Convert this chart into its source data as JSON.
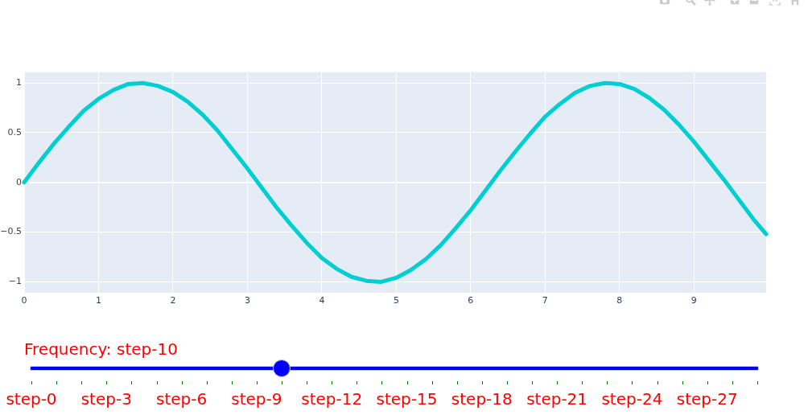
{
  "chart_data": {
    "type": "line",
    "x": [
      0,
      0.2,
      0.4,
      0.6,
      0.8,
      1.0,
      1.2,
      1.4,
      1.6,
      1.8,
      2.0,
      2.2,
      2.4,
      2.6,
      2.8,
      3.0,
      3.2,
      3.4,
      3.6,
      3.8,
      4.0,
      4.2,
      4.4,
      4.6,
      4.8,
      5.0,
      5.2,
      5.4,
      5.6,
      5.8,
      6.0,
      6.2,
      6.4,
      6.6,
      6.8,
      7.0,
      7.2,
      7.4,
      7.6,
      7.8,
      8.0,
      8.2,
      8.4,
      8.6,
      8.8,
      9.0,
      9.2,
      9.4,
      9.6,
      9.8,
      9.97
    ],
    "values": [
      0,
      0.2,
      0.39,
      0.56,
      0.72,
      0.84,
      0.93,
      0.99,
      1.0,
      0.97,
      0.91,
      0.81,
      0.68,
      0.52,
      0.33,
      0.14,
      -0.06,
      -0.26,
      -0.44,
      -0.61,
      -0.76,
      -0.87,
      -0.95,
      -0.99,
      -1.0,
      -0.96,
      -0.88,
      -0.77,
      -0.63,
      -0.46,
      -0.28,
      -0.08,
      0.12,
      0.31,
      0.49,
      0.66,
      0.79,
      0.9,
      0.97,
      1.0,
      0.99,
      0.94,
      0.85,
      0.73,
      0.58,
      0.41,
      0.22,
      0.03,
      -0.17,
      -0.37,
      -0.52
    ],
    "color": "#00ced1",
    "xlim": [
      0,
      9.97
    ],
    "xticks": [
      0,
      1,
      2,
      3,
      4,
      5,
      6,
      7,
      8,
      9
    ],
    "ylim": [
      -1.11,
      1.11
    ],
    "yticks": [
      {
        "value": -1,
        "label": "−1"
      },
      {
        "value": -0.5,
        "label": "−0.5"
      },
      0,
      0.5,
      1
    ],
    "grid": true,
    "annotations": [
      "Frequency: step-10",
      "step-0",
      "step-3",
      "step-6",
      "step-9",
      "step-12",
      "step-15",
      "step-18",
      "step-21",
      "step-24",
      "step-27"
    ]
  }
}
